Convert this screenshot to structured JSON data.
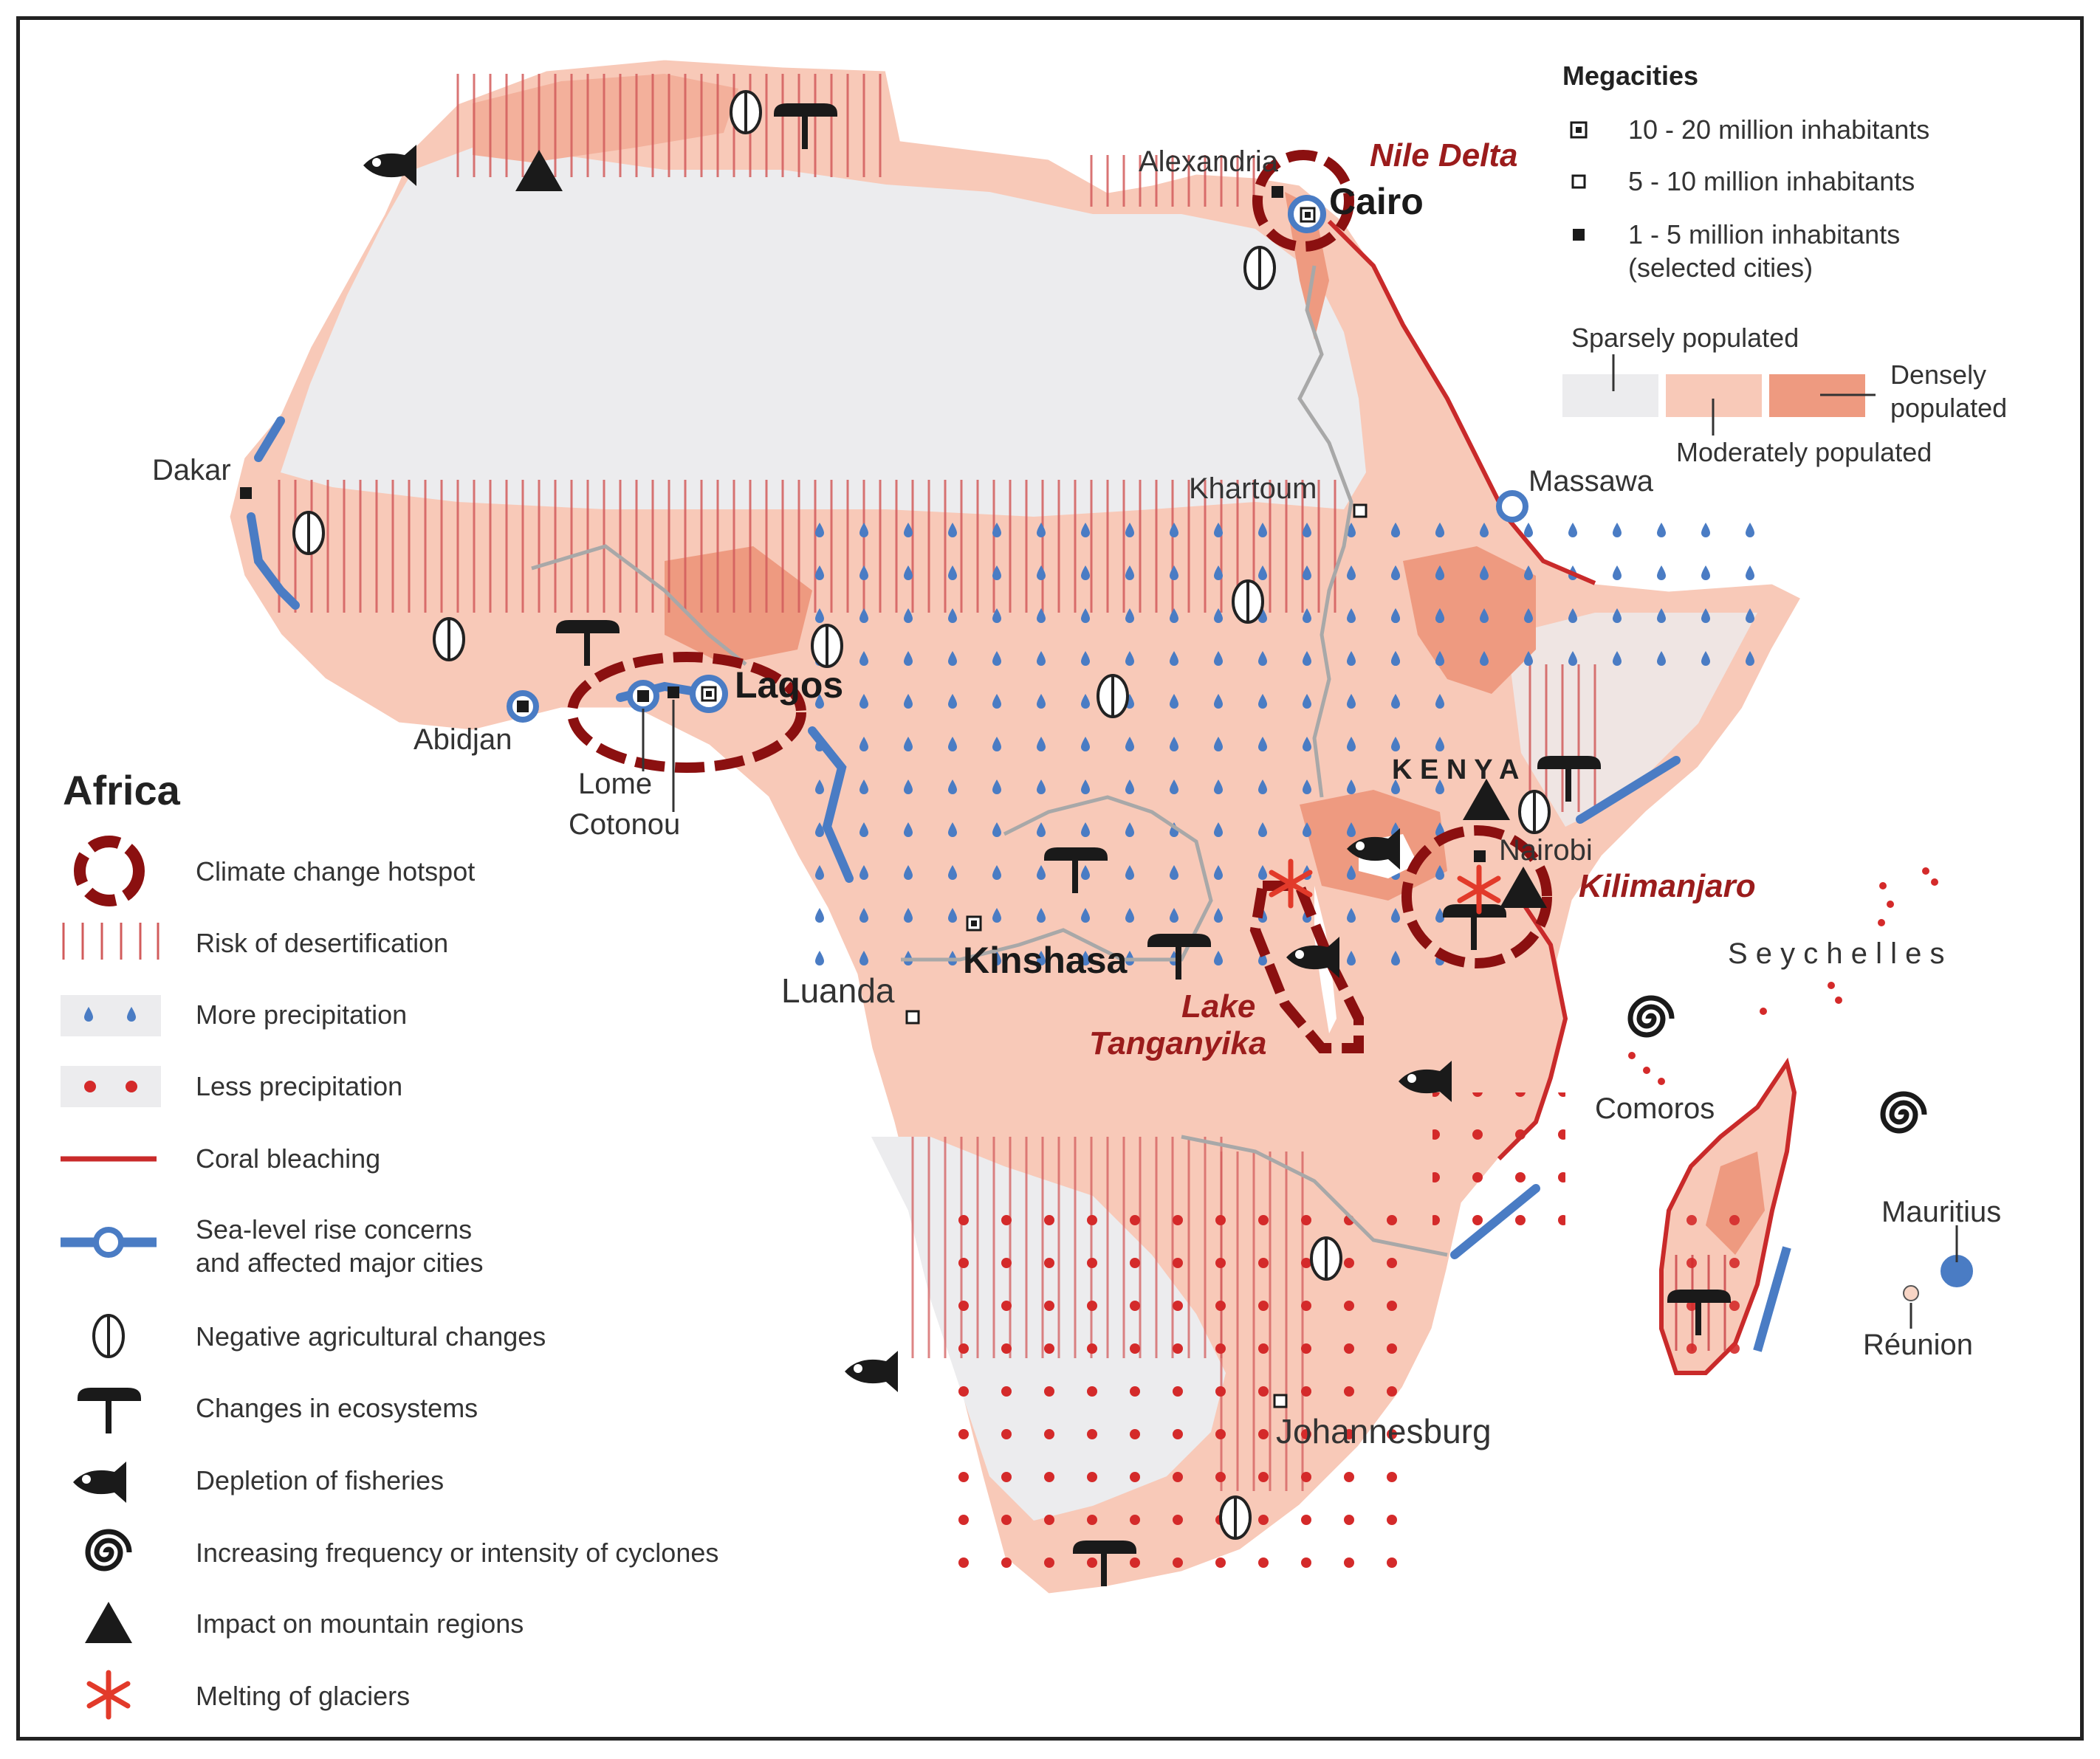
{
  "map": {
    "title": "Africa",
    "colors": {
      "sparse": "#ececee",
      "moderate": "#f8c9b8",
      "dense": "#ee9a80",
      "hotspot": "#8b1010",
      "coral": "#c92a2a",
      "sea": "#4a7cc4",
      "precip_more": "#4a7cc4",
      "precip_less": "#d42a2a",
      "desert_stripe": "#d96a6a"
    }
  },
  "megacities": {
    "heading": "Megacities",
    "items": [
      {
        "label": "10 - 20 million inhabitants",
        "icon": "square-dot-icon"
      },
      {
        "label": "5 - 10 million inhabitants",
        "icon": "hollow-square-icon"
      },
      {
        "label": "1 - 5 million inhabitants",
        "icon": "filled-square-icon"
      },
      {
        "label": "(selected cities)",
        "icon": ""
      }
    ]
  },
  "population": {
    "sparse": "Sparsely populated",
    "moderate": "Moderately populated",
    "dense_1": "Densely",
    "dense_2": "populated"
  },
  "cities": {
    "alexandria": "Alexandria",
    "cairo": "Cairo",
    "nile_delta": "Nile Delta",
    "dakar": "Dakar",
    "khartoum": "Khartoum",
    "massawa": "Massawa",
    "abidjan": "Abidjan",
    "lagos": "Lagos",
    "lome": "Lome",
    "cotonou": "Cotonou",
    "kenya": "K E N Y A",
    "nairobi": "Nairobi",
    "kilimanjaro": "Kilimanjaro",
    "kinshasa": "Kinshasa",
    "luanda": "Luanda",
    "lake_1": "Lake",
    "lake_2": "Tanganyika",
    "seychelles": "S e y c h e l l e s",
    "comoros": "Comoros",
    "mauritius": "Mauritius",
    "reunion": "Réunion",
    "johannesburg": "Johannesburg"
  },
  "legend": {
    "title": "Africa",
    "items": [
      {
        "label": "Climate change hotspot",
        "icon": "hotspot-ring-icon"
      },
      {
        "label": "Risk of desertification",
        "icon": "desertification-stripes-icon"
      },
      {
        "label": "More precipitation",
        "icon": "blue-drops-icon"
      },
      {
        "label": "Less precipitation",
        "icon": "red-dots-icon"
      },
      {
        "label": "Coral bleaching",
        "icon": "red-line-icon"
      },
      {
        "label": "Sea-level rise concerns",
        "icon": "blue-line-circle-icon"
      },
      {
        "label": "and affected major cities",
        "icon": ""
      },
      {
        "label": "Negative agricultural changes",
        "icon": "leaf-icon"
      },
      {
        "label": "Changes in ecosystems",
        "icon": "tree-icon"
      },
      {
        "label": "Depletion of fisheries",
        "icon": "fish-icon"
      },
      {
        "label": "Increasing frequency or intensity of cyclones",
        "icon": "spiral-icon"
      },
      {
        "label": "Impact on mountain regions",
        "icon": "triangle-icon"
      },
      {
        "label": "Melting of glaciers",
        "icon": "asterisk-icon"
      }
    ]
  }
}
